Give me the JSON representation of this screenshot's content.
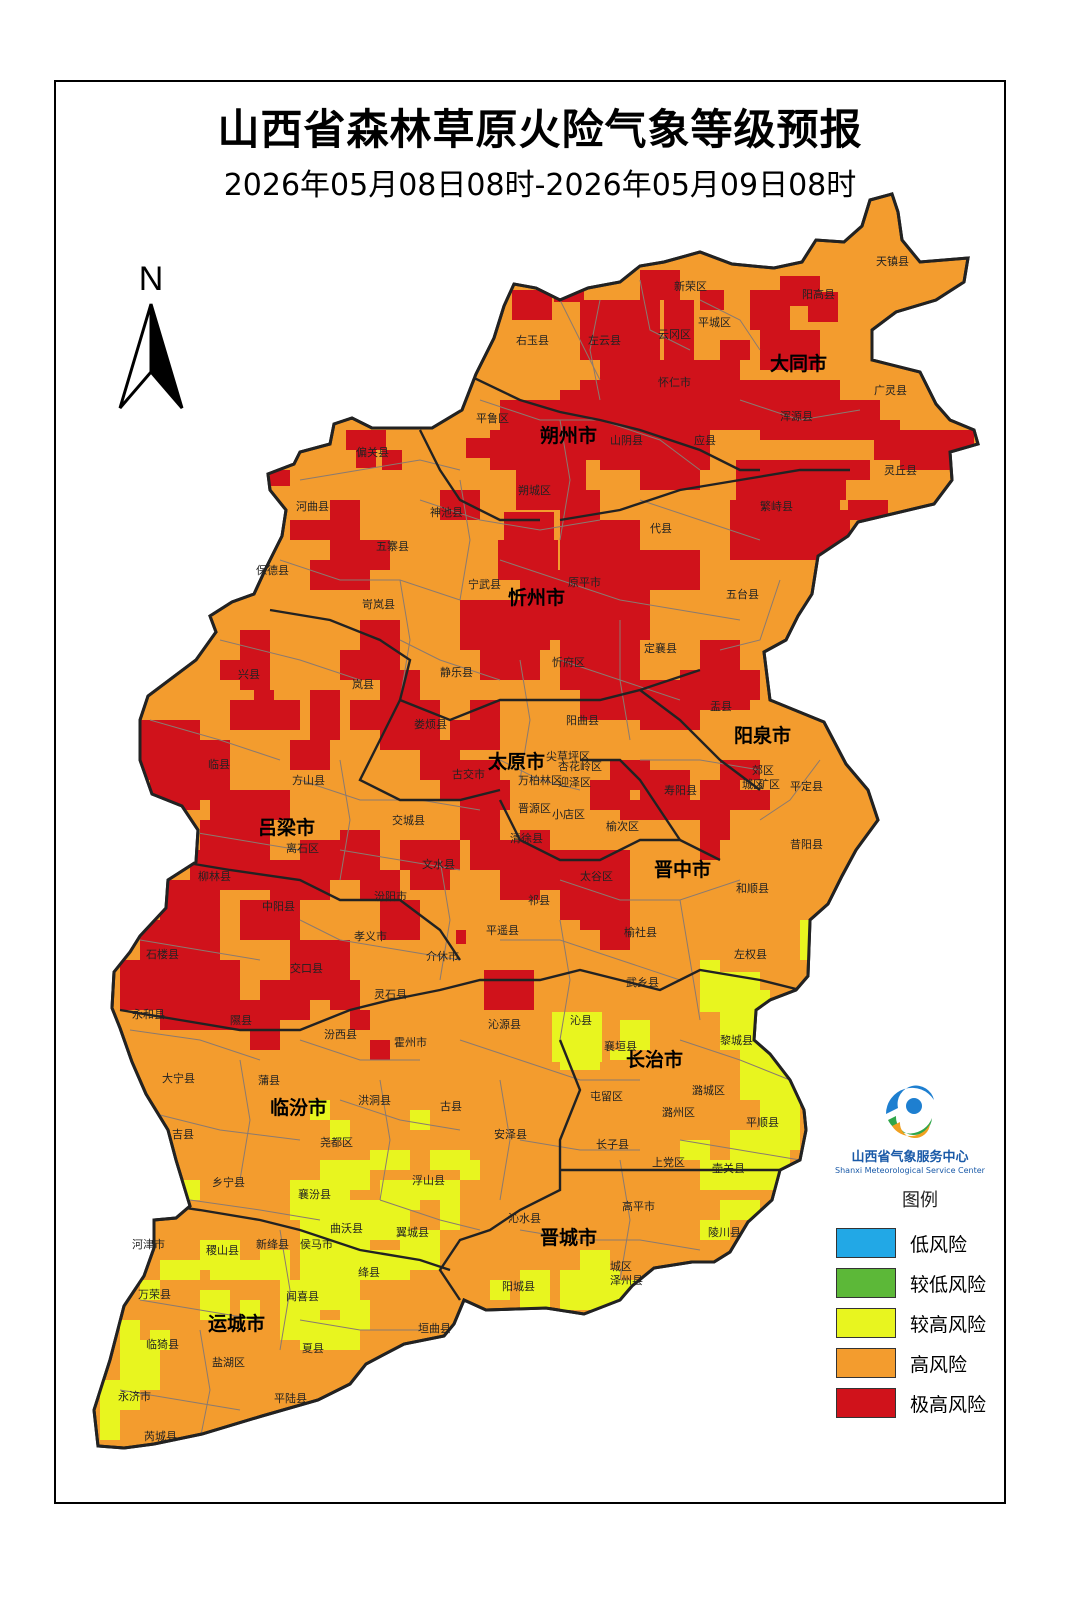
{
  "title": "山西省森林草原火险气象等级预报",
  "subtitle": "2026年05月08日08时-2026年05月09日08时",
  "north_arrow": {
    "label": "N"
  },
  "colors": {
    "low": "#22a8e6",
    "lower": "#5cb838",
    "higher": "#e8f51f",
    "high": "#f39c2e",
    "extreme": "#d0121b",
    "boundary": "#444444"
  },
  "legend": {
    "title": "图例",
    "items": [
      {
        "label": "低风险",
        "color": "#22a8e6"
      },
      {
        "label": "较低风险",
        "color": "#5cb838"
      },
      {
        "label": "较高风险",
        "color": "#e8f51f"
      },
      {
        "label": "高风险",
        "color": "#f39c2e"
      },
      {
        "label": "极高风险",
        "color": "#d0121b"
      }
    ]
  },
  "logo": {
    "name_cn": "山西省气象服务中心",
    "name_en": "Shanxi Meteorological Service Center"
  },
  "cities": {
    "datong": "大同市",
    "shuozhou": "朔州市",
    "xinzhou": "忻州市",
    "taiyuan": "太原市",
    "yangquan": "阳泉市",
    "lvliang": "吕梁市",
    "jinzhong": "晋中市",
    "changzhi": "长治市",
    "linfen": "临汾市",
    "jincheng": "晋城市",
    "yuncheng": "运城市"
  },
  "counties": {
    "tianzhen": "天镇县",
    "xinrong": "新荣区",
    "yanggao": "阳高县",
    "pingcheng": "平城区",
    "yungang": "云冈区",
    "youyu": "右玉县",
    "zuoyun": "左云县",
    "huairen": "怀仁市",
    "guangling": "广灵县",
    "hunyuan": "浑源县",
    "pinglu_d": "平鲁区",
    "shanyin": "山阴县",
    "yingxian": "应县",
    "lingqiu": "灵丘县",
    "pianguan": "偏关县",
    "shuocheng": "朔城区",
    "fanshi": "繁峙县",
    "hequ": "河曲县",
    "shenchi": "神池县",
    "daixian": "代县",
    "wuzhai": "五寨县",
    "baode": "保德县",
    "ningwu": "宁武县",
    "yuanping": "原平市",
    "wutai": "五台县",
    "kelan": "岢岚县",
    "xinfu": "忻府区",
    "dingxiang": "定襄县",
    "xingxian": "兴县",
    "lanxian": "岚县",
    "jingle": "静乐县",
    "yuxian": "盂县",
    "yangqu": "阳曲县",
    "loufan": "娄烦县",
    "jiancaoping": "尖草坪区",
    "gujiao": "古交市",
    "xinghualing": "杏花岭区",
    "yingze": "迎泽区",
    "wanbailin": "万柏林区",
    "jiaoqu": "郊区",
    "chengqu": "城区",
    "kuangqu": "矿区",
    "pingding": "平定县",
    "linxian": "临县",
    "fangshan": "方山县",
    "shouyang": "寿阳县",
    "jinyuan": "晋源区",
    "xiaodian": "小店区",
    "lishi": "离石区",
    "jiaocheng": "交城县",
    "qingxu": "清徐县",
    "yuci": "榆次区",
    "xiyang": "昔阳县",
    "liulin": "柳林县",
    "wenshui": "文水县",
    "taigu": "太谷区",
    "heshun": "和顺县",
    "zhongyang": "中阳县",
    "fenyang": "汾阳市",
    "qixian": "祁县",
    "pingyao": "平遥县",
    "yushe": "榆社县",
    "xiaoyi": "孝义市",
    "shilou": "石楼县",
    "jiexiu": "介休市",
    "zuoquan": "左权县",
    "jiaokou": "交口县",
    "lingshi": "灵石县",
    "wuxiang": "武乡县",
    "yonghe": "永和县",
    "xixian": "隰县",
    "qinxian": "沁县",
    "fenxi": "汾西县",
    "qinyuan": "沁源县",
    "xiangyuan": "襄垣县",
    "licheng": "黎城县",
    "huozhou": "霍州市",
    "daning": "大宁县",
    "puxian": "蒲县",
    "lucheng": "潞城区",
    "hongtong": "洪洞县",
    "gu": "古县",
    "tunliu": "屯留区",
    "luzhou": "潞州区",
    "pingshun": "平顺县",
    "jixian": "吉县",
    "yaodu": "尧都区",
    "anze": "安泽县",
    "zhangzi": "长子县",
    "shangdang": "上党区",
    "huguan": "壶关县",
    "xiangning": "乡宁县",
    "xiangfen": "襄汾县",
    "fushan": "浮山县",
    "gaoping": "高平市",
    "qinshui": "沁水县",
    "quwo": "曲沃县",
    "yicheng": "翼城县",
    "lingchuan": "陵川县",
    "hejin": "河津市",
    "jishan": "稷山县",
    "xinjiang": "新绛县",
    "houma": "侯马市",
    "jiangxian": "绛县",
    "chengqu_jc": "城区",
    "zezhou": "泽州县",
    "yangcheng": "阳城县",
    "wanrong": "万荣县",
    "wenxi": "闻喜县",
    "yuanqu": "垣曲县",
    "linyi": "临猗县",
    "xiaxian": "夏县",
    "yanhu": "盐湖区",
    "yongji": "永济市",
    "pinglu_y": "平陆县",
    "ruicheng": "芮城县"
  }
}
